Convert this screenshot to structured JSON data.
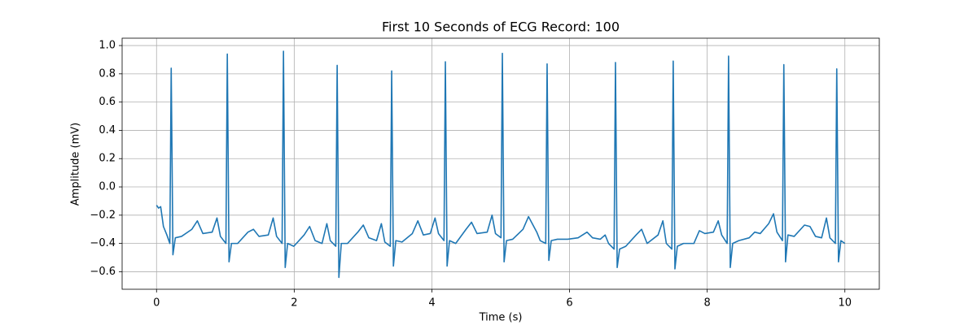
{
  "chart_data": {
    "type": "line",
    "title": "First 10 Seconds of ECG Record: 100",
    "xlabel": "Time (s)",
    "ylabel": "Amplitude (mV)",
    "xlim": [
      -0.5,
      10.5
    ],
    "ylim": [
      -0.724,
      1.052
    ],
    "xticks": [
      0,
      2,
      4,
      6,
      8,
      10
    ],
    "yticks": [
      {
        "value": -0.6,
        "label": "−0.6"
      },
      {
        "value": -0.4,
        "label": "−0.4"
      },
      {
        "value": -0.2,
        "label": "−0.2"
      },
      {
        "value": 0,
        "label": "0.0"
      },
      0.2,
      0.4,
      0.6,
      0.8,
      {
        "value": 1,
        "label": "1.0"
      }
    ],
    "grid": true,
    "color": "#1f77b4",
    "x": [
      0,
      0.03,
      0.06,
      0.1,
      0.15,
      0.193,
      0.213,
      0.238,
      0.273,
      0.363,
      0.513,
      0.593,
      0.673,
      0.808,
      0.878,
      0.928,
      1.008,
      1.028,
      1.053,
      1.088,
      1.178,
      1.328,
      1.408,
      1.488,
      1.624,
      1.694,
      1.744,
      1.824,
      1.844,
      1.869,
      1.904,
      1.994,
      2.144,
      2.224,
      2.304,
      2.404,
      2.474,
      2.524,
      2.604,
      2.624,
      2.649,
      2.684,
      2.774,
      2.924,
      3.004,
      3.084,
      3.196,
      3.266,
      3.316,
      3.396,
      3.416,
      3.441,
      3.476,
      3.566,
      3.716,
      3.796,
      3.876,
      3.976,
      4.046,
      4.096,
      4.176,
      4.196,
      4.221,
      4.256,
      4.346,
      4.496,
      4.576,
      4.656,
      4.804,
      4.874,
      4.924,
      5.004,
      5.024,
      5.049,
      5.084,
      5.174,
      5.324,
      5.404,
      5.524,
      5.574,
      5.654,
      5.674,
      5.699,
      5.734,
      5.824,
      5.974,
      6.124,
      6.254,
      6.334,
      6.447,
      6.517,
      6.567,
      6.647,
      6.667,
      6.692,
      6.727,
      6.817,
      6.967,
      7.047,
      7.127,
      7.286,
      7.356,
      7.406,
      7.486,
      7.506,
      7.531,
      7.566,
      7.656,
      7.806,
      7.886,
      7.966,
      8.09,
      8.16,
      8.21,
      8.29,
      8.31,
      8.335,
      8.37,
      8.46,
      8.61,
      8.69,
      8.77,
      8.893,
      8.963,
      9.013,
      9.093,
      9.113,
      9.138,
      9.173,
      9.263,
      9.413,
      9.493,
      9.573,
      9.662,
      9.732,
      9.782,
      9.862,
      9.882,
      9.907,
      9.942,
      10.0
    ],
    "values": [
      -0.13,
      -0.15,
      -0.14,
      -0.28,
      -0.34,
      -0.4,
      0.84,
      -0.48,
      -0.36,
      -0.35,
      -0.3,
      -0.24,
      -0.33,
      -0.32,
      -0.22,
      -0.35,
      -0.4,
      0.94,
      -0.53,
      -0.4,
      -0.4,
      -0.32,
      -0.3,
      -0.35,
      -0.34,
      -0.22,
      -0.35,
      -0.4,
      0.96,
      -0.57,
      -0.4,
      -0.42,
      -0.34,
      -0.28,
      -0.38,
      -0.4,
      -0.26,
      -0.38,
      -0.42,
      0.86,
      -0.64,
      -0.4,
      -0.4,
      -0.32,
      -0.27,
      -0.36,
      -0.38,
      -0.26,
      -0.39,
      -0.42,
      0.82,
      -0.56,
      -0.38,
      -0.39,
      -0.33,
      -0.24,
      -0.34,
      -0.33,
      -0.22,
      -0.33,
      -0.38,
      0.885,
      -0.56,
      -0.38,
      -0.4,
      -0.3,
      -0.25,
      -0.33,
      -0.32,
      -0.2,
      -0.33,
      -0.36,
      0.945,
      -0.53,
      -0.38,
      -0.37,
      -0.3,
      -0.21,
      -0.32,
      -0.38,
      -0.4,
      0.87,
      -0.52,
      -0.38,
      -0.37,
      -0.37,
      -0.36,
      -0.32,
      -0.36,
      -0.37,
      -0.34,
      -0.4,
      -0.44,
      0.88,
      -0.57,
      -0.44,
      -0.42,
      -0.34,
      -0.3,
      -0.4,
      -0.34,
      -0.24,
      -0.4,
      -0.44,
      0.89,
      -0.58,
      -0.42,
      -0.4,
      -0.4,
      -0.31,
      -0.33,
      -0.32,
      -0.24,
      -0.34,
      -0.4,
      0.925,
      -0.57,
      -0.4,
      -0.38,
      -0.36,
      -0.32,
      -0.33,
      -0.26,
      -0.19,
      -0.32,
      -0.38,
      0.865,
      -0.53,
      -0.34,
      -0.35,
      -0.27,
      -0.28,
      -0.35,
      -0.36,
      -0.22,
      -0.36,
      -0.4,
      0.835,
      -0.53,
      -0.38,
      -0.4
    ]
  }
}
